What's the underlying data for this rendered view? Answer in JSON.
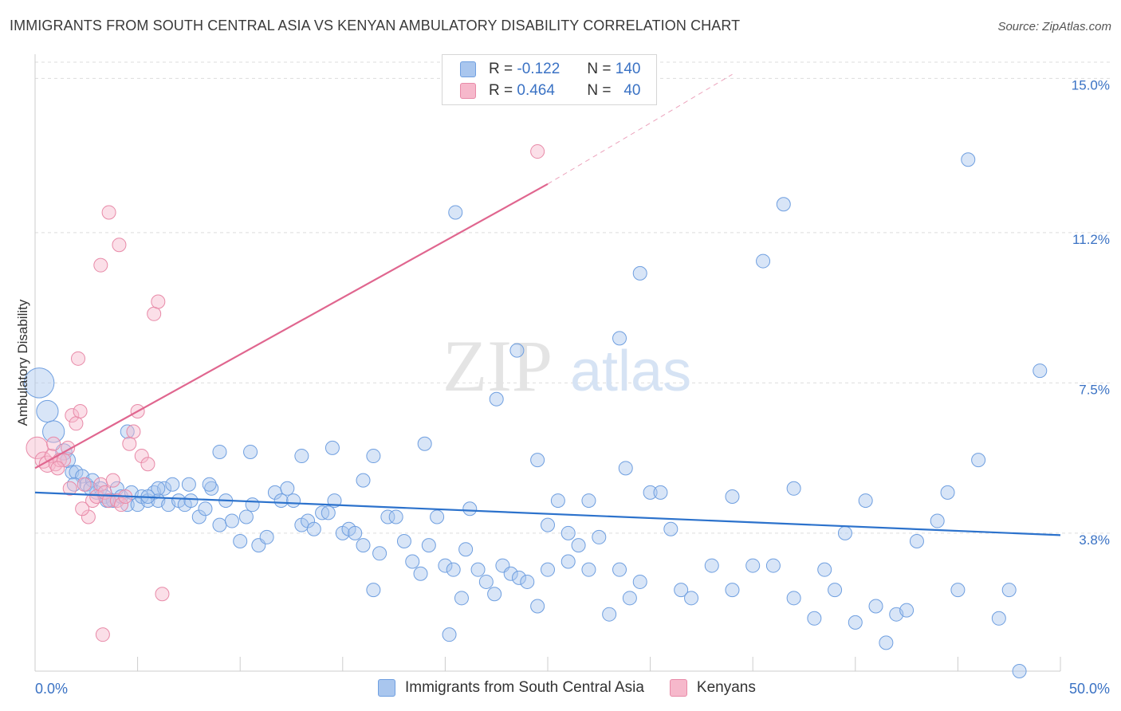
{
  "header": {
    "title": "IMMIGRANTS FROM SOUTH CENTRAL ASIA VS KENYAN AMBULATORY DISABILITY CORRELATION CHART",
    "source": "Source: ZipAtlas.com"
  },
  "legend": {
    "rows": [
      {
        "r_label": "R =",
        "r_value": "-0.122",
        "n_label": "N =",
        "n_value": "140",
        "color": "#a9c6ee"
      },
      {
        "r_label": "R =",
        "r_value": "0.464",
        "n_label": "N =",
        "n_value": "40",
        "color": "#f6b8cb"
      }
    ]
  },
  "watermark": {
    "zip": "ZIP",
    "atlas": "atlas"
  },
  "colors": {
    "blue_fill": "#a9c6ee",
    "blue_stroke": "#6f9fe0",
    "blue_line": "#2c72cc",
    "pink_fill": "#f6b8cb",
    "pink_stroke": "#e88aa8",
    "pink_line": "#e0668f",
    "grid": "#dddddd",
    "tick_label": "#3a72c4"
  },
  "chart_data": {
    "type": "scatter",
    "title": "IMMIGRANTS FROM SOUTH CENTRAL ASIA VS KENYAN AMBULATORY DISABILITY CORRELATION CHART",
    "xlabel": "",
    "ylabel": "Ambulatory Disability",
    "xlim": [
      0,
      50
    ],
    "ylim": [
      0.4,
      15.4
    ],
    "x_tick_labels": [
      {
        "value": 0,
        "label": "0.0%"
      },
      {
        "value": 50,
        "label": "50.0%"
      }
    ],
    "y_ticks": [
      {
        "value": 3.8,
        "label": "3.8%"
      },
      {
        "value": 7.5,
        "label": "7.5%"
      },
      {
        "value": 11.2,
        "label": "11.2%"
      },
      {
        "value": 15.0,
        "label": "15.0%"
      }
    ],
    "grid": "horizontal dashed",
    "legend_position": "bottom-center",
    "series": [
      {
        "name": "Immigrants from South Central Asia",
        "color": "#a9c6ee",
        "trend": {
          "x": [
            0,
            50
          ],
          "y": [
            4.8,
            3.75
          ]
        },
        "points": [
          [
            0.2,
            7.5,
            2.2
          ],
          [
            0.6,
            6.8,
            1.6
          ],
          [
            0.9,
            6.3,
            1.6
          ],
          [
            1.4,
            5.8,
            1.2
          ],
          [
            1.6,
            5.6,
            1.1
          ],
          [
            1.8,
            5.3,
            1.0
          ],
          [
            2.0,
            5.3,
            1.0
          ],
          [
            2.3,
            5.2,
            1.0
          ],
          [
            2.5,
            5.0,
            1.0
          ],
          [
            2.8,
            5.1,
            1.0
          ],
          [
            3.0,
            4.8,
            1.0
          ],
          [
            3.2,
            4.9,
            1.0
          ],
          [
            3.4,
            4.7,
            1.0
          ],
          [
            3.6,
            4.6,
            1.0
          ],
          [
            3.8,
            4.6,
            1.0
          ],
          [
            4.0,
            4.9,
            1.0
          ],
          [
            4.2,
            4.7,
            1.0
          ],
          [
            4.5,
            4.5,
            1.0
          ],
          [
            4.7,
            4.8,
            1.0
          ],
          [
            5.0,
            4.5,
            1.0
          ],
          [
            5.2,
            4.7,
            1.0
          ],
          [
            5.5,
            4.6,
            1.0
          ],
          [
            5.8,
            4.8,
            1.0
          ],
          [
            6.0,
            4.6,
            1.0
          ],
          [
            6.3,
            4.9,
            1.0
          ],
          [
            6.5,
            4.5,
            1.0
          ],
          [
            6.7,
            5.0,
            1.0
          ],
          [
            7.0,
            4.6,
            1.0
          ],
          [
            7.3,
            4.5,
            1.0
          ],
          [
            7.6,
            4.6,
            1.0
          ],
          [
            8.0,
            4.2,
            1.0
          ],
          [
            8.3,
            4.4,
            1.0
          ],
          [
            8.6,
            4.9,
            1.0
          ],
          [
            9.0,
            4.0,
            1.0
          ],
          [
            9.3,
            4.6,
            1.0
          ],
          [
            9.6,
            4.1,
            1.0
          ],
          [
            10.0,
            3.6,
            1.0
          ],
          [
            10.3,
            4.2,
            1.0
          ],
          [
            10.6,
            4.5,
            1.0
          ],
          [
            10.9,
            3.5,
            1.0
          ],
          [
            11.3,
            3.7,
            1.0
          ],
          [
            11.7,
            4.8,
            1.0
          ],
          [
            12.0,
            4.6,
            1.0
          ],
          [
            12.3,
            4.9,
            1.0
          ],
          [
            12.6,
            4.6,
            1.0
          ],
          [
            13.0,
            4.0,
            1.0
          ],
          [
            13.3,
            4.1,
            1.0
          ],
          [
            13.6,
            3.9,
            1.0
          ],
          [
            14.0,
            4.3,
            1.0
          ],
          [
            14.3,
            4.3,
            1.0
          ],
          [
            14.6,
            4.6,
            1.0
          ],
          [
            15.0,
            3.8,
            1.0
          ],
          [
            15.3,
            3.9,
            1.0
          ],
          [
            15.6,
            3.8,
            1.0
          ],
          [
            16.0,
            3.5,
            1.0
          ],
          [
            16.5,
            2.4,
            1.0
          ],
          [
            16.8,
            3.3,
            1.0
          ],
          [
            17.2,
            4.2,
            1.0
          ],
          [
            17.6,
            4.2,
            1.0
          ],
          [
            18.0,
            3.6,
            1.0
          ],
          [
            18.4,
            3.1,
            1.0
          ],
          [
            18.8,
            2.8,
            1.0
          ],
          [
            19.2,
            3.5,
            1.0
          ],
          [
            19.6,
            4.2,
            1.0
          ],
          [
            20.0,
            3.0,
            1.0
          ],
          [
            20.4,
            2.9,
            1.0
          ],
          [
            20.8,
            2.2,
            1.0
          ],
          [
            21.2,
            4.4,
            1.0
          ],
          [
            21.6,
            2.9,
            1.0
          ],
          [
            22.0,
            2.6,
            1.0
          ],
          [
            22.4,
            2.3,
            1.0
          ],
          [
            22.8,
            3.0,
            1.0
          ],
          [
            23.2,
            2.8,
            1.0
          ],
          [
            23.6,
            2.7,
            1.0
          ],
          [
            24.0,
            2.6,
            1.0
          ],
          [
            24.5,
            2.0,
            1.0
          ],
          [
            25.0,
            2.9,
            1.0
          ],
          [
            25.5,
            4.6,
            1.0
          ],
          [
            26.0,
            3.8,
            1.0
          ],
          [
            26.5,
            3.5,
            1.0
          ],
          [
            27.0,
            2.9,
            1.0
          ],
          [
            27.5,
            3.7,
            1.0
          ],
          [
            28.0,
            1.8,
            1.0
          ],
          [
            28.5,
            2.9,
            1.0
          ],
          [
            29.0,
            2.2,
            1.0
          ],
          [
            29.5,
            2.6,
            1.0
          ],
          [
            30.0,
            4.8,
            1.0
          ],
          [
            31.0,
            3.9,
            1.0
          ],
          [
            31.5,
            2.4,
            1.0
          ],
          [
            32.0,
            2.2,
            1.0
          ],
          [
            33.0,
            3.0,
            1.0
          ],
          [
            34.0,
            2.4,
            1.0
          ],
          [
            35.0,
            3.0,
            1.0
          ],
          [
            36.0,
            3.0,
            1.0
          ],
          [
            37.0,
            2.2,
            1.0
          ],
          [
            38.0,
            1.7,
            1.0
          ],
          [
            39.0,
            2.4,
            1.0
          ],
          [
            40.0,
            1.6,
            1.0
          ],
          [
            41.0,
            2.0,
            1.0
          ],
          [
            42.0,
            1.8,
            1.0
          ],
          [
            43.0,
            3.6,
            1.0
          ],
          [
            44.0,
            4.1,
            1.0
          ],
          [
            45.0,
            2.4,
            1.0
          ],
          [
            46.0,
            5.6,
            1.0
          ],
          [
            47.0,
            1.7,
            1.0
          ],
          [
            48.0,
            0.4,
            1.0
          ],
          [
            49.0,
            7.8,
            1.0
          ],
          [
            45.5,
            13.0,
            1.0
          ],
          [
            36.5,
            11.9,
            1.0
          ],
          [
            20.5,
            11.7,
            1.0
          ],
          [
            35.5,
            10.5,
            1.0
          ],
          [
            29.5,
            10.2,
            1.0
          ],
          [
            28.5,
            8.6,
            1.0
          ],
          [
            23.5,
            8.3,
            1.0
          ],
          [
            22.5,
            7.1,
            1.0
          ],
          [
            19.0,
            6.0,
            1.0
          ],
          [
            14.5,
            5.9,
            1.0
          ],
          [
            13.0,
            5.7,
            1.0
          ],
          [
            10.5,
            5.8,
            1.0
          ],
          [
            9.0,
            5.8,
            1.0
          ],
          [
            8.5,
            5.0,
            1.0
          ],
          [
            7.5,
            5.0,
            1.0
          ],
          [
            6.0,
            4.9,
            1.0
          ],
          [
            5.5,
            4.7,
            1.0
          ],
          [
            4.5,
            6.3,
            1.0
          ],
          [
            3.5,
            4.6,
            1.0
          ],
          [
            2.7,
            4.9,
            1.0
          ],
          [
            1.9,
            5.0,
            1.0
          ],
          [
            16.0,
            5.1,
            1.0
          ],
          [
            16.5,
            5.7,
            1.0
          ],
          [
            24.5,
            5.6,
            1.0
          ],
          [
            26.0,
            3.1,
            1.0
          ],
          [
            27.0,
            4.6,
            1.0
          ],
          [
            28.8,
            5.4,
            1.0
          ],
          [
            30.5,
            4.8,
            1.0
          ],
          [
            34.0,
            4.7,
            1.0
          ],
          [
            40.5,
            4.6,
            1.0
          ],
          [
            37.0,
            4.9,
            1.0
          ],
          [
            44.5,
            4.8,
            1.0
          ],
          [
            39.5,
            3.8,
            1.0
          ],
          [
            41.5,
            1.1,
            1.0
          ],
          [
            47.5,
            2.4,
            1.0
          ],
          [
            42.5,
            1.9,
            1.0
          ],
          [
            38.5,
            2.9,
            1.0
          ],
          [
            25.0,
            4.0,
            1.0
          ],
          [
            21.0,
            3.4,
            1.0
          ],
          [
            20.2,
            1.3,
            1.0
          ]
        ]
      },
      {
        "name": "Kenyans",
        "color": "#f6b8cb",
        "trend": {
          "x": [
            0,
            25.0
          ],
          "y": [
            5.4,
            12.4
          ]
        },
        "trend_extension": {
          "x": [
            25.0,
            34.0
          ],
          "y": [
            12.4,
            15.1
          ]
        },
        "points": [
          [
            0.1,
            5.9,
            1.6
          ],
          [
            0.4,
            5.6,
            1.2
          ],
          [
            0.6,
            5.5,
            1.2
          ],
          [
            0.8,
            5.7,
            1.0
          ],
          [
            1.0,
            5.5,
            1.0
          ],
          [
            1.2,
            5.6,
            1.0
          ],
          [
            1.4,
            5.6,
            1.0
          ],
          [
            1.6,
            5.9,
            1.0
          ],
          [
            1.8,
            6.7,
            1.0
          ],
          [
            2.0,
            6.5,
            1.0
          ],
          [
            2.2,
            6.8,
            1.0
          ],
          [
            2.4,
            5.0,
            1.0
          ],
          [
            2.6,
            4.2,
            1.0
          ],
          [
            2.8,
            4.6,
            1.0
          ],
          [
            3.0,
            4.7,
            1.0
          ],
          [
            3.2,
            5.0,
            1.0
          ],
          [
            3.4,
            4.8,
            1.0
          ],
          [
            3.6,
            4.6,
            1.0
          ],
          [
            3.8,
            5.1,
            1.0
          ],
          [
            4.0,
            4.6,
            1.0
          ],
          [
            4.2,
            4.5,
            1.0
          ],
          [
            4.4,
            4.7,
            1.0
          ],
          [
            4.6,
            6.0,
            1.0
          ],
          [
            4.8,
            6.3,
            1.0
          ],
          [
            5.0,
            6.8,
            1.0
          ],
          [
            5.2,
            5.7,
            1.0
          ],
          [
            5.5,
            5.5,
            1.0
          ],
          [
            5.8,
            9.2,
            1.0
          ],
          [
            6.0,
            9.5,
            1.0
          ],
          [
            6.2,
            2.3,
            1.0
          ],
          [
            3.6,
            11.7,
            1.0
          ],
          [
            4.1,
            10.9,
            1.0
          ],
          [
            3.2,
            10.4,
            1.0
          ],
          [
            2.1,
            8.1,
            1.0
          ],
          [
            3.3,
            1.3,
            1.0
          ],
          [
            24.5,
            13.2,
            1.0
          ],
          [
            1.1,
            5.4,
            1.0
          ],
          [
            1.7,
            4.9,
            1.0
          ],
          [
            2.3,
            4.4,
            1.0
          ],
          [
            0.9,
            6.0,
            1.0
          ]
        ]
      }
    ],
    "bottom_legend": [
      "Immigrants from South Central Asia",
      "Kenyans"
    ]
  }
}
